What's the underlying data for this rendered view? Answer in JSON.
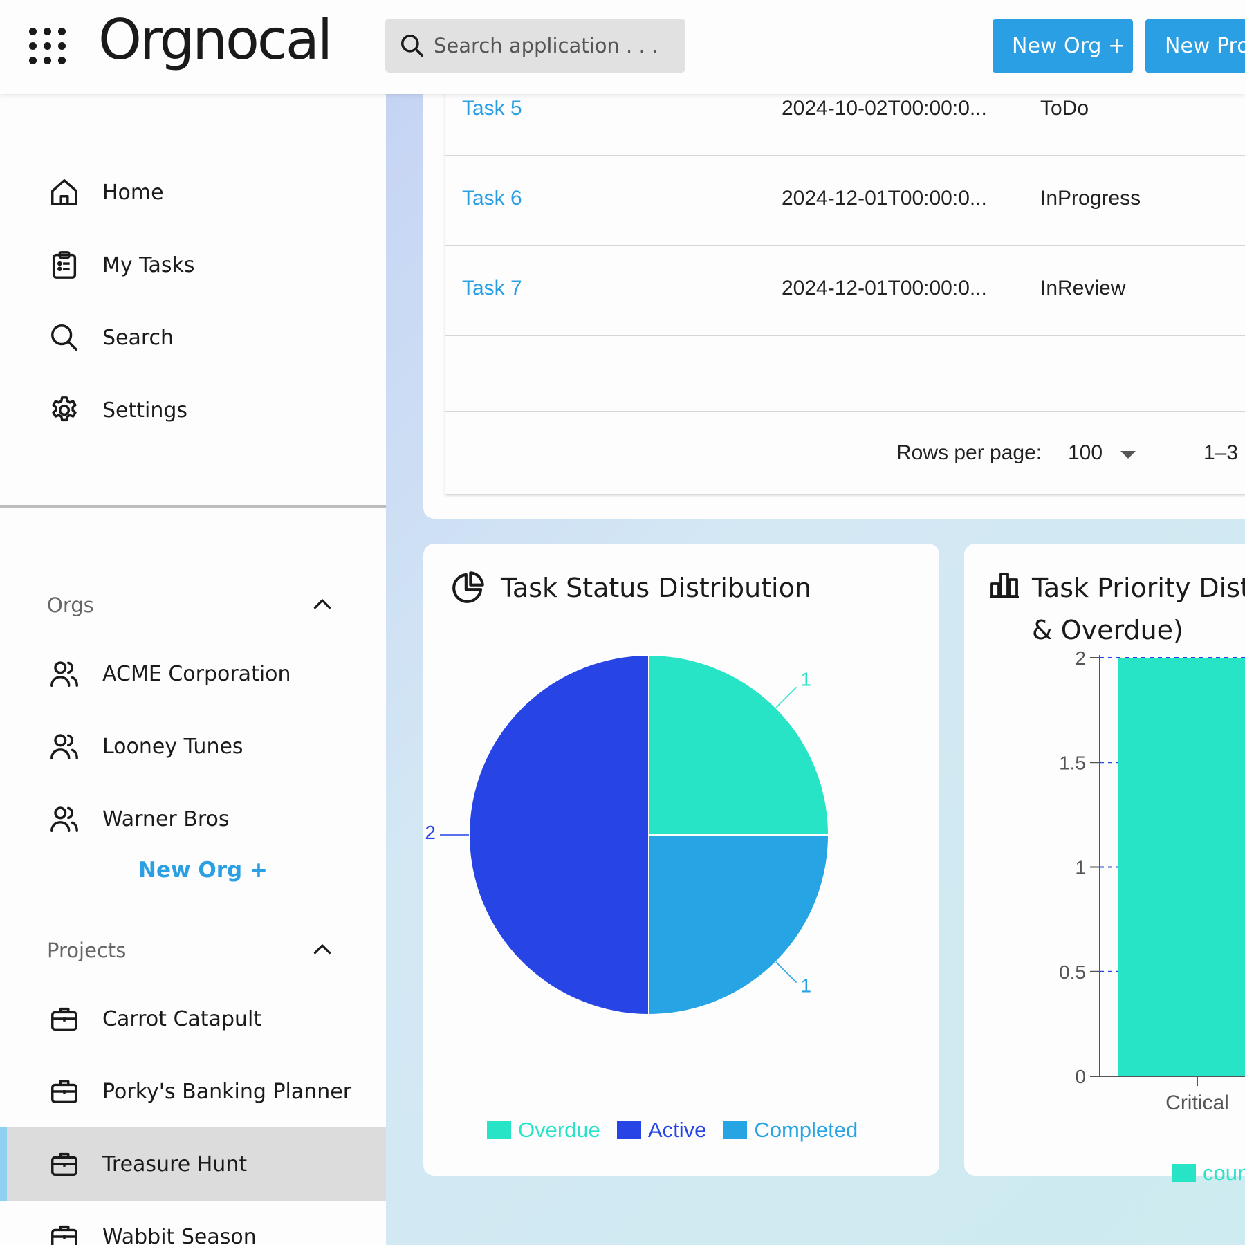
{
  "header": {
    "logo": "Orgnocal",
    "search_placeholder": "Search application . . .",
    "new_org_button": "New Org +",
    "new_project_button": "New Project +"
  },
  "sidebar": {
    "nav": [
      {
        "label": "Home",
        "icon": "home-icon"
      },
      {
        "label": "My Tasks",
        "icon": "clipboard-icon"
      },
      {
        "label": "Search",
        "icon": "search-icon"
      },
      {
        "label": "Settings",
        "icon": "gear-icon"
      }
    ],
    "orgs_title": "Orgs",
    "orgs": [
      "ACME Corporation",
      "Looney Tunes",
      "Warner Bros"
    ],
    "new_org_link": "New Org +",
    "projects_title": "Projects",
    "projects": [
      "Carrot Catapult",
      "Porky's Banking Planner",
      "Treasure Hunt",
      "Wabbit Season"
    ],
    "selected_project": "Treasure Hunt"
  },
  "tasks_table": {
    "rows": [
      {
        "name": "Task 5",
        "date": "2024-10-02T00:00:0...",
        "status": "ToDo"
      },
      {
        "name": "Task 6",
        "date": "2024-12-01T00:00:0...",
        "status": "InProgress"
      },
      {
        "name": "Task 7",
        "date": "2024-12-01T00:00:0...",
        "status": "InReview"
      }
    ],
    "rows_per_page_label": "Rows per page:",
    "rows_per_page_value": "100",
    "range_text": "1–3"
  },
  "status_chart": {
    "title": "Task Status Distribution",
    "chart_data": {
      "type": "pie",
      "slices": [
        {
          "label": "Overdue",
          "value": 1,
          "color": "#26e4c5"
        },
        {
          "label": "Completed",
          "value": 1,
          "color": "#26a4e4"
        },
        {
          "label": "Active",
          "value": 2,
          "color": "#2645e4"
        }
      ],
      "legend": [
        "Overdue",
        "Active",
        "Completed"
      ],
      "legend_position": "bottom"
    }
  },
  "priority_chart": {
    "title_line1": "Task Priority Distr",
    "title_line2": "& Overdue)",
    "chart_data": {
      "type": "bar",
      "categories": [
        "Critical"
      ],
      "series": [
        {
          "name": "count",
          "values": [
            2
          ],
          "color": "#26e4c5"
        }
      ],
      "ylim": [
        0,
        2
      ],
      "yticks": [
        "0",
        "0.5",
        "1",
        "1.5",
        "2"
      ],
      "legend_position": "bottom"
    }
  }
}
